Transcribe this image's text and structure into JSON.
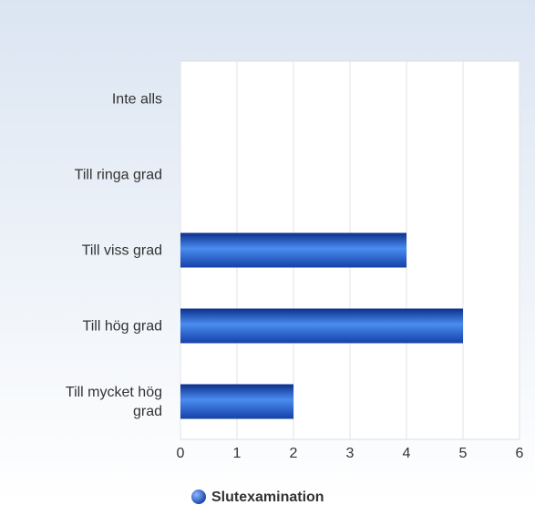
{
  "chart_data": {
    "type": "bar",
    "orientation": "horizontal",
    "categories": [
      "Inte alls",
      "Till ringa grad",
      "Till viss grad",
      "Till hög grad",
      "Till mycket hög grad"
    ],
    "series": [
      {
        "name": "Slutexamination",
        "color": "#1a56c8",
        "values": [
          0,
          0,
          4,
          5,
          2
        ]
      }
    ],
    "xlim": [
      0,
      6
    ],
    "xticks": [
      0,
      1,
      2,
      3,
      4,
      5,
      6
    ],
    "grid": true,
    "legend": "bottom"
  }
}
